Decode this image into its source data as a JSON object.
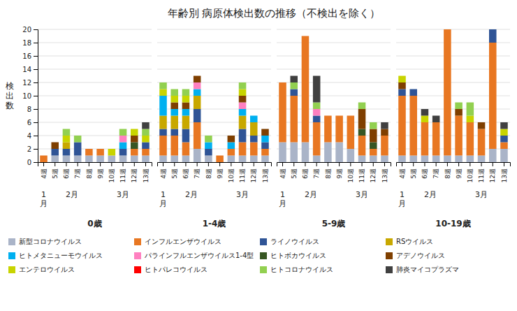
{
  "chart_data": [
    {
      "type": "bar",
      "stacked": true,
      "grid": true,
      "legend": "bottom",
      "title": "年齢別 病原体検出数の推移（不検出を除く）",
      "subtitle": "0歳",
      "ylabel": "検\n出\n数",
      "categories": [
        "4週",
        "5週",
        "6週",
        "7週",
        "8週",
        "9週",
        "10週",
        "11週",
        "12週",
        "13週"
      ],
      "ylim": [
        0,
        20
      ],
      "yticks": [
        0,
        2,
        4,
        6,
        8,
        10,
        12,
        14,
        16,
        18,
        20
      ],
      "annotations": [
        {
          "text": "1\n月",
          "x": [
            "4週"
          ]
        },
        {
          "text": "2月",
          "x": [
            "5週",
            "6週",
            "7週",
            "8週"
          ]
        },
        {
          "text": "3月",
          "x": [
            "9週",
            "10週",
            "11週",
            "12週",
            "13週"
          ]
        }
      ],
      "series": [
        {
          "name": "新型コロナウイルス",
          "color": "#aab4c8",
          "values": [
            0,
            1,
            1,
            1,
            1,
            1,
            1,
            1,
            1,
            1
          ]
        },
        {
          "name": "インフルエンザウイルス",
          "color": "#e87722",
          "values": [
            1,
            0,
            0,
            0,
            1,
            1,
            0,
            0,
            1,
            1
          ]
        },
        {
          "name": "ライノウイルス",
          "color": "#2f5496",
          "values": [
            0,
            1,
            1,
            2,
            0,
            0,
            0,
            1,
            0,
            1
          ]
        },
        {
          "name": "RSウイルス",
          "color": "#c8a800",
          "values": [
            0,
            0,
            1,
            0,
            0,
            0,
            0,
            0,
            0,
            0
          ]
        },
        {
          "name": "ヒトメタニューモウイルス",
          "color": "#00b0f0",
          "values": [
            0,
            0,
            0,
            0,
            0,
            0,
            0,
            1,
            0,
            0
          ]
        },
        {
          "name": "パラインフルエンザウイルス1-4型",
          "color": "#ff80c0",
          "values": [
            0,
            0,
            0,
            0,
            0,
            0,
            0,
            1,
            0,
            0
          ]
        },
        {
          "name": "ヒトボカウイルス",
          "color": "#375623",
          "values": [
            0,
            0,
            0,
            0,
            0,
            0,
            0,
            0,
            1,
            0
          ]
        },
        {
          "name": "アデノウイルス",
          "color": "#7f3f00",
          "values": [
            0,
            1,
            0,
            0,
            0,
            0,
            0,
            0,
            1,
            0
          ]
        },
        {
          "name": "エンテロウイルス",
          "color": "#c8d400",
          "values": [
            0,
            0,
            1,
            0,
            0,
            0,
            1,
            0,
            1,
            1
          ]
        },
        {
          "name": "ヒトパレコウイルス",
          "color": "#ff0000",
          "values": [
            0,
            0,
            0,
            0,
            0,
            0,
            0,
            0,
            0,
            0
          ]
        },
        {
          "name": "ヒトコロナウイルス",
          "color": "#92d050",
          "values": [
            0,
            0,
            1,
            1,
            0,
            0,
            0,
            1,
            0,
            1
          ]
        },
        {
          "name": "肺炎マイコプラズマ",
          "color": "#404040",
          "values": [
            0,
            0,
            0,
            0,
            0,
            0,
            0,
            0,
            0,
            1
          ]
        }
      ]
    },
    {
      "type": "bar",
      "stacked": true,
      "grid": true,
      "tick_labels": "x",
      "subtitle": "1-4歳",
      "categories": [
        "4週",
        "5週",
        "6週",
        "7週",
        "8週",
        "9週",
        "10週",
        "11週",
        "12週",
        "13週"
      ],
      "ylim": [
        0,
        20
      ],
      "yticks": [
        0,
        2,
        4,
        6,
        8,
        10,
        12,
        14,
        16,
        18,
        20
      ],
      "annotations": [
        {
          "text": "1\n月",
          "x": [
            "4週"
          ]
        },
        {
          "text": "2月",
          "x": [
            "5週",
            "6週",
            "7週",
            "8週"
          ]
        },
        {
          "text": "3月",
          "x": [
            "9週",
            "10週",
            "11週",
            "12週",
            "13週"
          ]
        }
      ],
      "series": [
        {
          "name": "新型コロナウイルス",
          "color": "#aab4c8",
          "values": [
            1,
            1,
            1,
            2,
            1,
            0,
            1,
            1,
            1,
            1
          ]
        },
        {
          "name": "インフルエンザウイルス",
          "color": "#e87722",
          "values": [
            3,
            3,
            2,
            4,
            0,
            1,
            1,
            2,
            2,
            1
          ]
        },
        {
          "name": "ライノウイルス",
          "color": "#2f5496",
          "values": [
            1,
            1,
            2,
            2,
            1,
            0,
            0,
            2,
            1,
            1
          ]
        },
        {
          "name": "RSウイルス",
          "color": "#c8a800",
          "values": [
            2,
            2,
            2,
            2,
            0,
            0,
            0,
            2,
            2,
            0
          ]
        },
        {
          "name": "ヒトメタニューモウイルス",
          "color": "#00b0f0",
          "values": [
            3,
            1,
            1,
            1,
            1,
            0,
            1,
            1,
            1,
            1
          ]
        },
        {
          "name": "パラインフルエンザウイルス1-4型",
          "color": "#ff80c0",
          "values": [
            0,
            0,
            0,
            1,
            0,
            0,
            0,
            1,
            0,
            0
          ]
        },
        {
          "name": "ヒトボカウイルス",
          "color": "#375623",
          "values": [
            0,
            0,
            0,
            0,
            0,
            0,
            0,
            0,
            0,
            0
          ]
        },
        {
          "name": "アデノウイルス",
          "color": "#7f3f00",
          "values": [
            0,
            1,
            1,
            1,
            0,
            0,
            1,
            1,
            0,
            1
          ]
        },
        {
          "name": "エンテロウイルス",
          "color": "#c8d400",
          "values": [
            1,
            1,
            1,
            0,
            0,
            0,
            0,
            1,
            0,
            0
          ]
        },
        {
          "name": "ヒトパレコウイルス",
          "color": "#ff0000",
          "values": [
            0,
            0,
            0,
            0,
            0,
            0,
            0,
            0,
            0,
            0
          ]
        },
        {
          "name": "ヒトコロナウイルス",
          "color": "#92d050",
          "values": [
            1,
            1,
            1,
            0,
            1,
            0,
            0,
            1,
            0,
            0
          ]
        },
        {
          "name": "肺炎マイコプラズマ",
          "color": "#404040",
          "values": [
            0,
            0,
            0,
            0,
            0,
            0,
            0,
            0,
            0,
            0
          ]
        }
      ]
    },
    {
      "type": "bar",
      "stacked": true,
      "grid": true,
      "tick_labels": "x",
      "subtitle": "5-9歳",
      "categories": [
        "4週",
        "5週",
        "6週",
        "7週",
        "8週",
        "9週",
        "10週",
        "11週",
        "12週",
        "13週"
      ],
      "ylim": [
        0,
        20
      ],
      "yticks": [
        0,
        2,
        4,
        6,
        8,
        10,
        12,
        14,
        16,
        18,
        20
      ],
      "annotations": [
        {
          "text": "1\n月",
          "x": [
            "4週"
          ]
        },
        {
          "text": "2月",
          "x": [
            "5週",
            "6週",
            "7週",
            "8週"
          ]
        },
        {
          "text": "3月",
          "x": [
            "9週",
            "10週",
            "11週",
            "12週",
            "13週"
          ]
        }
      ],
      "series": [
        {
          "name": "新型コロナウイルス",
          "color": "#aab4c8",
          "values": [
            3,
            3,
            3,
            1,
            3,
            3,
            2,
            1,
            1,
            1
          ]
        },
        {
          "name": "インフルエンザウイルス",
          "color": "#e87722",
          "values": [
            9,
            7,
            16,
            5,
            4,
            4,
            5,
            3,
            1,
            3
          ]
        },
        {
          "name": "ライノウイルス",
          "color": "#2f5496",
          "values": [
            0,
            1,
            0,
            1,
            0,
            0,
            0,
            0,
            0,
            0
          ]
        },
        {
          "name": "RSウイルス",
          "color": "#c8a800",
          "values": [
            0,
            0,
            0,
            0,
            0,
            0,
            0,
            0,
            0,
            0
          ]
        },
        {
          "name": "ヒトメタニューモウイルス",
          "color": "#00b0f0",
          "values": [
            0,
            0,
            0,
            0,
            0,
            0,
            0,
            0,
            0,
            0
          ]
        },
        {
          "name": "パラインフルエンザウイルス1-4型",
          "color": "#ff80c0",
          "values": [
            0,
            0,
            0,
            1,
            0,
            0,
            0,
            0,
            0,
            0
          ]
        },
        {
          "name": "ヒトボカウイルス",
          "color": "#375623",
          "values": [
            0,
            0,
            0,
            0,
            0,
            0,
            0,
            1,
            1,
            0
          ]
        },
        {
          "name": "アデノウイルス",
          "color": "#7f3f00",
          "values": [
            0,
            0,
            0,
            0,
            0,
            0,
            0,
            3,
            2,
            1
          ]
        },
        {
          "name": "エンテロウイルス",
          "color": "#c8d400",
          "values": [
            0,
            0,
            0,
            0,
            0,
            0,
            0,
            0,
            0,
            0
          ]
        },
        {
          "name": "ヒトパレコウイルス",
          "color": "#ff0000",
          "values": [
            0,
            0,
            0,
            0,
            0,
            0,
            0,
            0,
            0,
            0
          ]
        },
        {
          "name": "ヒトコロナウイルス",
          "color": "#92d050",
          "values": [
            0,
            1,
            0,
            1,
            0,
            0,
            0,
            1,
            1,
            0
          ]
        },
        {
          "name": "肺炎マイコプラズマ",
          "color": "#404040",
          "values": [
            0,
            1,
            0,
            4,
            0,
            0,
            0,
            0,
            0,
            1
          ]
        }
      ]
    },
    {
      "type": "bar",
      "stacked": true,
      "grid": true,
      "tick_labels": "x",
      "subtitle": "10-19歳",
      "categories": [
        "4週",
        "5週",
        "6週",
        "7週",
        "8週",
        "9週",
        "10週",
        "11週",
        "12週",
        "13週"
      ],
      "ylim": [
        0,
        20
      ],
      "yticks": [
        0,
        2,
        4,
        6,
        8,
        10,
        12,
        14,
        16,
        18,
        20
      ],
      "annotations": [
        {
          "text": "1\n月",
          "x": [
            "4週"
          ]
        },
        {
          "text": "2月",
          "x": [
            "5週",
            "6週",
            "7週",
            "8週"
          ]
        },
        {
          "text": "3月",
          "x": [
            "9週",
            "10週",
            "11週",
            "12週",
            "13週"
          ]
        }
      ],
      "series": [
        {
          "name": "新型コロナウイルス",
          "color": "#aab4c8",
          "values": [
            1,
            1,
            1,
            1,
            1,
            1,
            1,
            1,
            2,
            2
          ]
        },
        {
          "name": "インフルエンザウイルス",
          "color": "#e87722",
          "values": [
            9,
            9,
            5,
            5,
            19,
            6,
            5,
            4,
            16,
            1
          ]
        },
        {
          "name": "ライノウイルス",
          "color": "#2f5496",
          "values": [
            1,
            1,
            0,
            0,
            0,
            0,
            0,
            0,
            2,
            1
          ]
        },
        {
          "name": "RSウイルス",
          "color": "#c8a800",
          "values": [
            0,
            0,
            0,
            0,
            0,
            0,
            0,
            0,
            0,
            0
          ]
        },
        {
          "name": "ヒトメタニューモウイルス",
          "color": "#00b0f0",
          "values": [
            0,
            0,
            0,
            0,
            0,
            0,
            0,
            0,
            0,
            0
          ]
        },
        {
          "name": "パラインフルエンザウイルス1-4型",
          "color": "#ff80c0",
          "values": [
            0,
            0,
            0,
            0,
            0,
            0,
            0,
            0,
            0,
            0
          ]
        },
        {
          "name": "ヒトボカウイルス",
          "color": "#375623",
          "values": [
            0,
            0,
            0,
            0,
            0,
            0,
            0,
            0,
            0,
            0
          ]
        },
        {
          "name": "アデノウイルス",
          "color": "#7f3f00",
          "values": [
            1,
            0,
            0,
            0,
            0,
            1,
            0,
            1,
            0,
            0
          ]
        },
        {
          "name": "エンテロウイルス",
          "color": "#c8d400",
          "values": [
            1,
            0,
            1,
            0,
            0,
            0,
            1,
            0,
            0,
            1
          ]
        },
        {
          "name": "ヒトパレコウイルス",
          "color": "#ff0000",
          "values": [
            0,
            0,
            0,
            0,
            0,
            0,
            0,
            0,
            0,
            0
          ]
        },
        {
          "name": "ヒトコロナウイルス",
          "color": "#92d050",
          "values": [
            0,
            0,
            0,
            0,
            0,
            1,
            2,
            0,
            0,
            0
          ]
        },
        {
          "name": "肺炎マイコプラズマ",
          "color": "#404040",
          "values": [
            0,
            0,
            1,
            1,
            0,
            0,
            0,
            0,
            0,
            1
          ]
        }
      ]
    }
  ]
}
